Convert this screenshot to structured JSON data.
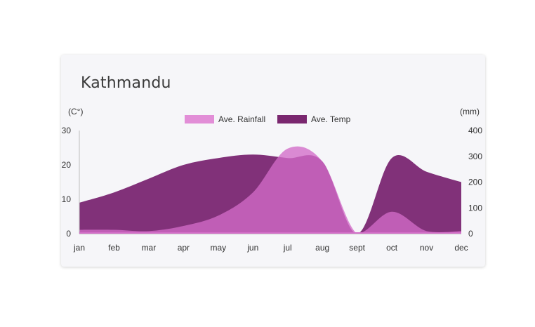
{
  "card": {
    "title": "Kathmandu"
  },
  "colors": {
    "rainfall": "#d26cc8",
    "temp": "#761f6e",
    "legend_rainfall": "#e28ed7",
    "legend_temp": "#7a276f"
  },
  "chart_data": {
    "type": "area",
    "title": "Kathmandu",
    "categories": [
      "jan",
      "feb",
      "mar",
      "apr",
      "may",
      "jun",
      "jul",
      "aug",
      "sept",
      "oct",
      "nov",
      "dec"
    ],
    "series": [
      {
        "name": "Ave. Rainfall",
        "axis": "right",
        "values": [
          15,
          15,
          10,
          30,
          70,
          160,
          330,
          280,
          0,
          85,
          10,
          10
        ]
      },
      {
        "name": "Ave. Temp",
        "axis": "left",
        "values": [
          9,
          12,
          16,
          20,
          22,
          23,
          22,
          21,
          0,
          22,
          18,
          15
        ]
      }
    ],
    "left_axis": {
      "label": "(C°)",
      "ylim": [
        0,
        30
      ],
      "ticks": [
        "0",
        "10",
        "20",
        "30"
      ]
    },
    "right_axis": {
      "label": "(mm)",
      "ylim": [
        0,
        400
      ],
      "ticks": [
        "0",
        "100",
        "200",
        "300",
        "400"
      ]
    },
    "legend": {
      "position": "top-center"
    },
    "grid": false
  }
}
